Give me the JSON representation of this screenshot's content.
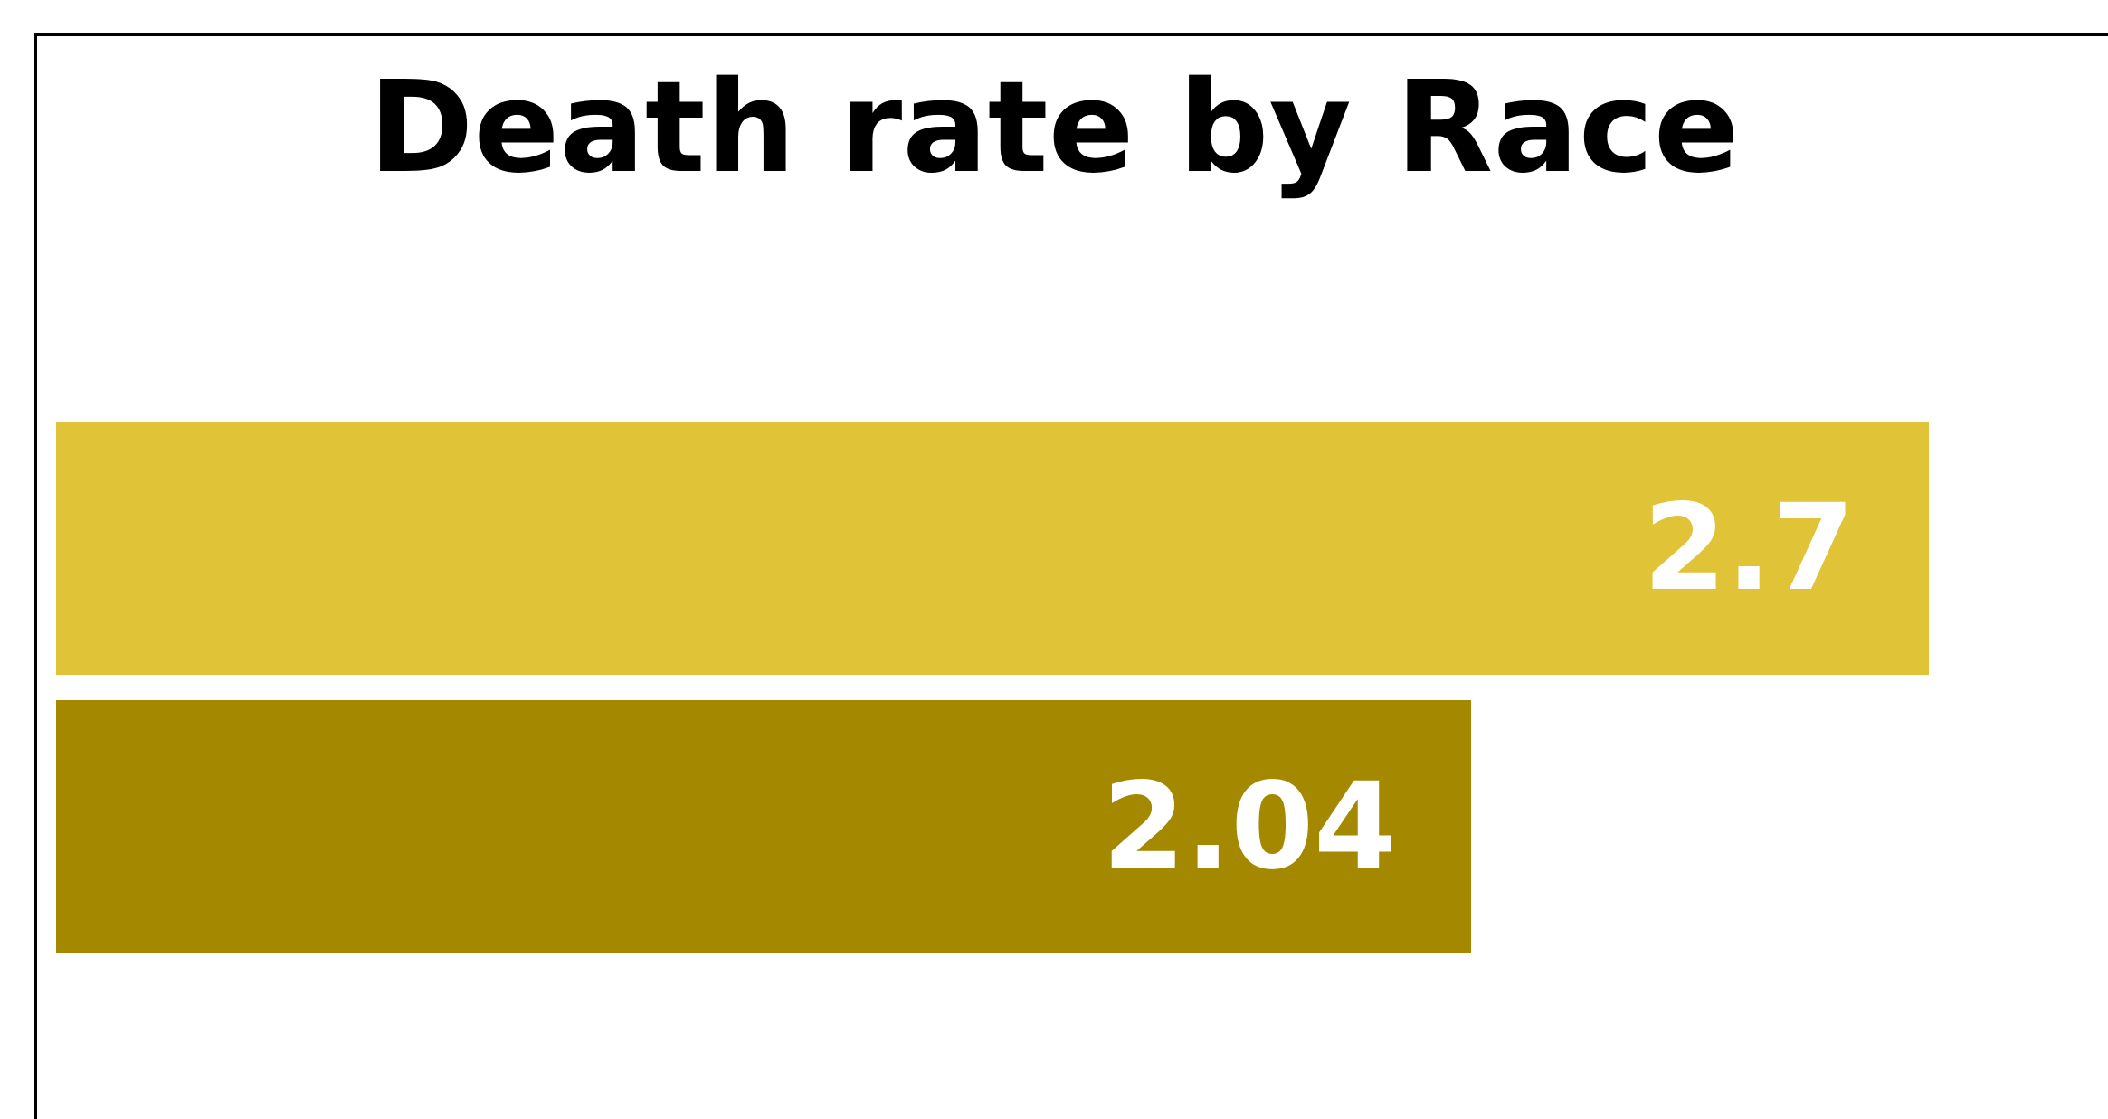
{
  "chart_data": {
    "type": "bar",
    "orientation": "horizontal",
    "title": "Death rate by Race",
    "xlabel": "",
    "ylabel": "",
    "xlim": [
      0,
      2.8
    ],
    "grid": false,
    "legend": "none",
    "series": [
      {
        "values": [
          2.7,
          2.04
        ],
        "colors": [
          "#E0C336",
          "#A38800"
        ]
      }
    ],
    "data_labels": [
      "2.7",
      "2.04"
    ]
  }
}
